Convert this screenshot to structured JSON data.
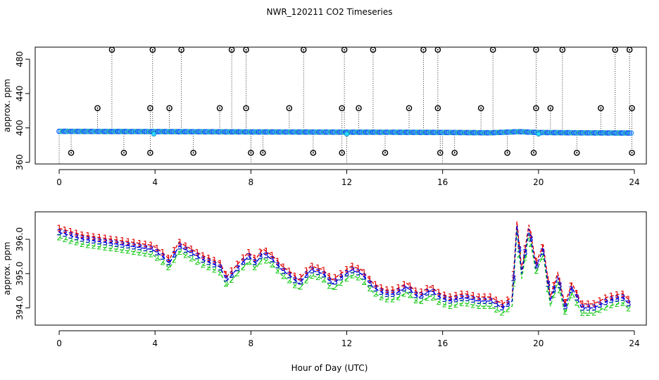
{
  "title": "NWR_120211  CO2 Timeseries",
  "xlabel": "Hour of Day (UTC)",
  "chart_data": [
    {
      "type": "scatter",
      "panel": "top",
      "ylabel": "approx. ppm",
      "xlim": [
        -1,
        24.5
      ],
      "ylim": [
        358,
        494
      ],
      "xticks": [
        0,
        4,
        8,
        12,
        16,
        20,
        24
      ],
      "yticks": [
        360,
        400,
        440,
        480
      ],
      "xtick_labels": [
        "0",
        "4",
        "8",
        "12",
        "16",
        "20",
        "24"
      ],
      "ytick_labels": [
        "360",
        "400",
        "440",
        "480"
      ],
      "baseline": [
        [
          0.0,
          396.0
        ],
        [
          2.0,
          395.8
        ],
        [
          4.0,
          395.7
        ],
        [
          6.0,
          395.5
        ],
        [
          8.0,
          395.3
        ],
        [
          10.0,
          395.2
        ],
        [
          12.0,
          395.0
        ],
        [
          14.0,
          394.9
        ],
        [
          16.0,
          394.7
        ],
        [
          18.0,
          394.3
        ],
        [
          19.2,
          395.6
        ],
        [
          20.0,
          394.6
        ],
        [
          22.0,
          394.2
        ],
        [
          24.0,
          394.0
        ]
      ],
      "high_flags": [
        {
          "x": 2.2,
          "y": 491
        },
        {
          "x": 3.9,
          "y": 491
        },
        {
          "x": 5.1,
          "y": 491
        },
        {
          "x": 7.2,
          "y": 491
        },
        {
          "x": 7.8,
          "y": 491
        },
        {
          "x": 10.2,
          "y": 491
        },
        {
          "x": 11.9,
          "y": 491
        },
        {
          "x": 13.1,
          "y": 491
        },
        {
          "x": 15.2,
          "y": 491
        },
        {
          "x": 15.8,
          "y": 491
        },
        {
          "x": 18.1,
          "y": 491
        },
        {
          "x": 19.9,
          "y": 491
        },
        {
          "x": 21.0,
          "y": 491
        },
        {
          "x": 23.2,
          "y": 491
        },
        {
          "x": 23.8,
          "y": 491
        },
        {
          "x": 1.6,
          "y": 423
        },
        {
          "x": 3.8,
          "y": 423
        },
        {
          "x": 4.6,
          "y": 423
        },
        {
          "x": 6.7,
          "y": 423
        },
        {
          "x": 7.8,
          "y": 423
        },
        {
          "x": 9.6,
          "y": 423
        },
        {
          "x": 11.8,
          "y": 423
        },
        {
          "x": 12.5,
          "y": 423
        },
        {
          "x": 14.6,
          "y": 423
        },
        {
          "x": 15.8,
          "y": 423
        },
        {
          "x": 17.6,
          "y": 423
        },
        {
          "x": 19.9,
          "y": 423
        },
        {
          "x": 20.5,
          "y": 423
        },
        {
          "x": 22.6,
          "y": 423
        },
        {
          "x": 23.9,
          "y": 423
        }
      ],
      "low_flags": [
        {
          "x": 0.5,
          "y": 371
        },
        {
          "x": 2.7,
          "y": 371
        },
        {
          "x": 3.8,
          "y": 371
        },
        {
          "x": 5.6,
          "y": 371
        },
        {
          "x": 8.0,
          "y": 371
        },
        {
          "x": 8.5,
          "y": 371
        },
        {
          "x": 10.6,
          "y": 371
        },
        {
          "x": 11.8,
          "y": 371
        },
        {
          "x": 13.6,
          "y": 371
        },
        {
          "x": 15.9,
          "y": 371
        },
        {
          "x": 16.5,
          "y": 371
        },
        {
          "x": 18.7,
          "y": 371
        },
        {
          "x": 19.8,
          "y": 371
        },
        {
          "x": 21.6,
          "y": 371
        },
        {
          "x": 23.9,
          "y": 371
        }
      ],
      "cyan_points": [
        {
          "x": 3.95,
          "y": 393
        },
        {
          "x": 12.0,
          "y": 393
        },
        {
          "x": 20.0,
          "y": 393
        }
      ]
    },
    {
      "type": "line",
      "panel": "bottom",
      "ylabel": "approx. ppm",
      "xlim": [
        -1,
        24.5
      ],
      "ylim": [
        393.5,
        396.8
      ],
      "xticks": [
        0,
        4,
        8,
        12,
        16,
        20,
        24
      ],
      "yticks": [
        394.0,
        395.0,
        396.0
      ],
      "xtick_labels": [
        "0",
        "4",
        "8",
        "12",
        "16",
        "20",
        "24"
      ],
      "ytick_labels": [
        "394.0",
        "395.0",
        "396.0"
      ],
      "series": [
        {
          "name": "1",
          "color": "#e00000",
          "offset": 0.12
        },
        {
          "name": "2",
          "color": "#22cc22",
          "offset": -0.15
        },
        {
          "name": "3",
          "color": "#0000dd",
          "offset": 0.0
        }
      ],
      "x": [
        0.0,
        1.0,
        2.0,
        3.0,
        3.9,
        4.3,
        4.6,
        5.0,
        5.5,
        6.0,
        6.7,
        7.0,
        7.5,
        7.9,
        8.2,
        8.5,
        8.9,
        9.3,
        9.7,
        10.0,
        10.5,
        11.0,
        11.4,
        11.8,
        12.2,
        12.6,
        13.1,
        13.6,
        14.0,
        14.5,
        15.0,
        15.5,
        15.9,
        16.3,
        16.9,
        17.5,
        18.0,
        18.5,
        18.9,
        19.1,
        19.3,
        19.6,
        19.9,
        20.2,
        20.5,
        20.8,
        21.1,
        21.4,
        21.8,
        22.3,
        22.9,
        23.5,
        23.8
      ],
      "y": [
        396.2,
        396.0,
        395.9,
        395.8,
        395.7,
        395.5,
        395.3,
        395.8,
        395.6,
        395.4,
        395.2,
        394.8,
        395.2,
        395.5,
        395.3,
        395.6,
        395.4,
        395.1,
        394.9,
        394.7,
        395.1,
        395.0,
        394.7,
        394.9,
        395.1,
        395.0,
        394.6,
        394.4,
        394.4,
        394.6,
        394.3,
        394.5,
        394.3,
        394.2,
        394.3,
        394.2,
        394.2,
        394.0,
        394.2,
        396.4,
        395.0,
        396.3,
        395.2,
        395.7,
        394.2,
        394.9,
        394.0,
        394.6,
        394.0,
        394.0,
        394.2,
        394.3,
        394.1
      ]
    }
  ]
}
